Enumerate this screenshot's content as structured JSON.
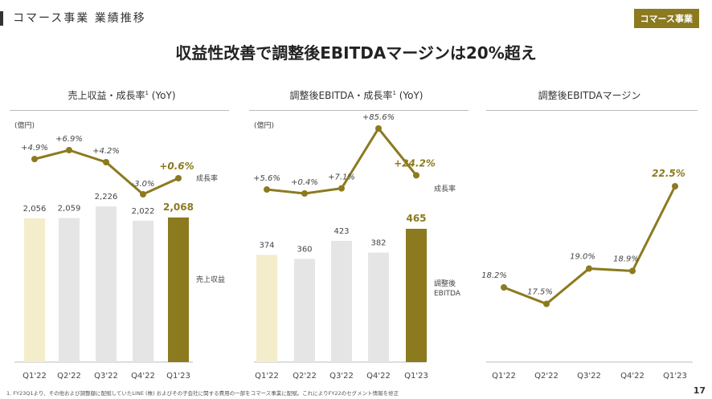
{
  "header": {
    "section_title": "コマース事業 業績推移",
    "badge": "コマース事業"
  },
  "headline": "収益性改善で調整後EBITDAマージンは20%超え",
  "footnote": "1. FY23Q1より、その他および調整額に配賦していたLINE (株) およびその子会社に関する費用の一部をコマース事業に配賦。これによりFY22のセグメント情報を修正",
  "page_number": "17",
  "colors": {
    "accent": "#8c7a1f",
    "light_bar": "#f3edcb",
    "grey_bar": "#e5e5e5"
  },
  "chart_data": [
    {
      "type": "bar+line",
      "title": "売上収益・成長率",
      "title_sup": "1",
      "title_suffix": " (YoY)",
      "unit": "(億円)",
      "categories": [
        "Q1'22",
        "Q2'22",
        "Q3'22",
        "Q4'22",
        "Q1'23"
      ],
      "bar_series": {
        "name": "売上収益",
        "values": [
          2056,
          2059,
          2226,
          2022,
          2068
        ],
        "labels": [
          "2,056",
          "2,059",
          "2,226",
          "2,022",
          "2,068"
        ]
      },
      "line_series": {
        "name": "成長率",
        "values": [
          4.9,
          6.9,
          4.2,
          -3.0,
          0.6
        ],
        "labels": [
          "+4.9%",
          "+6.9%",
          "+4.2%",
          "-3.0%",
          "+0.6%"
        ]
      }
    },
    {
      "type": "bar+line",
      "title": "調整後EBITDA・成長率",
      "title_sup": "1",
      "title_suffix": " (YoY)",
      "unit": "(億円)",
      "categories": [
        "Q1'22",
        "Q2'22",
        "Q3'22",
        "Q4'22",
        "Q1'23"
      ],
      "bar_series": {
        "name": "調整後\nEBITDA",
        "name_lines": [
          "調整後",
          "EBITDA"
        ],
        "values": [
          374,
          360,
          423,
          382,
          465
        ],
        "labels": [
          "374",
          "360",
          "423",
          "382",
          "465"
        ]
      },
      "line_series": {
        "name": "成長率",
        "values": [
          5.6,
          0.4,
          7.1,
          85.6,
          24.2
        ],
        "labels": [
          "+5.6%",
          "+0.4%",
          "+7.1%",
          "+85.6%",
          "+24.2%"
        ]
      }
    },
    {
      "type": "line",
      "title": "調整後EBITDAマージン",
      "categories": [
        "Q1'22",
        "Q2'22",
        "Q3'22",
        "Q4'22",
        "Q1'23"
      ],
      "values": [
        18.2,
        17.5,
        19.0,
        18.9,
        22.5
      ],
      "labels": [
        "18.2%",
        "17.5%",
        "19.0%",
        "18.9%",
        "22.5%"
      ]
    }
  ]
}
